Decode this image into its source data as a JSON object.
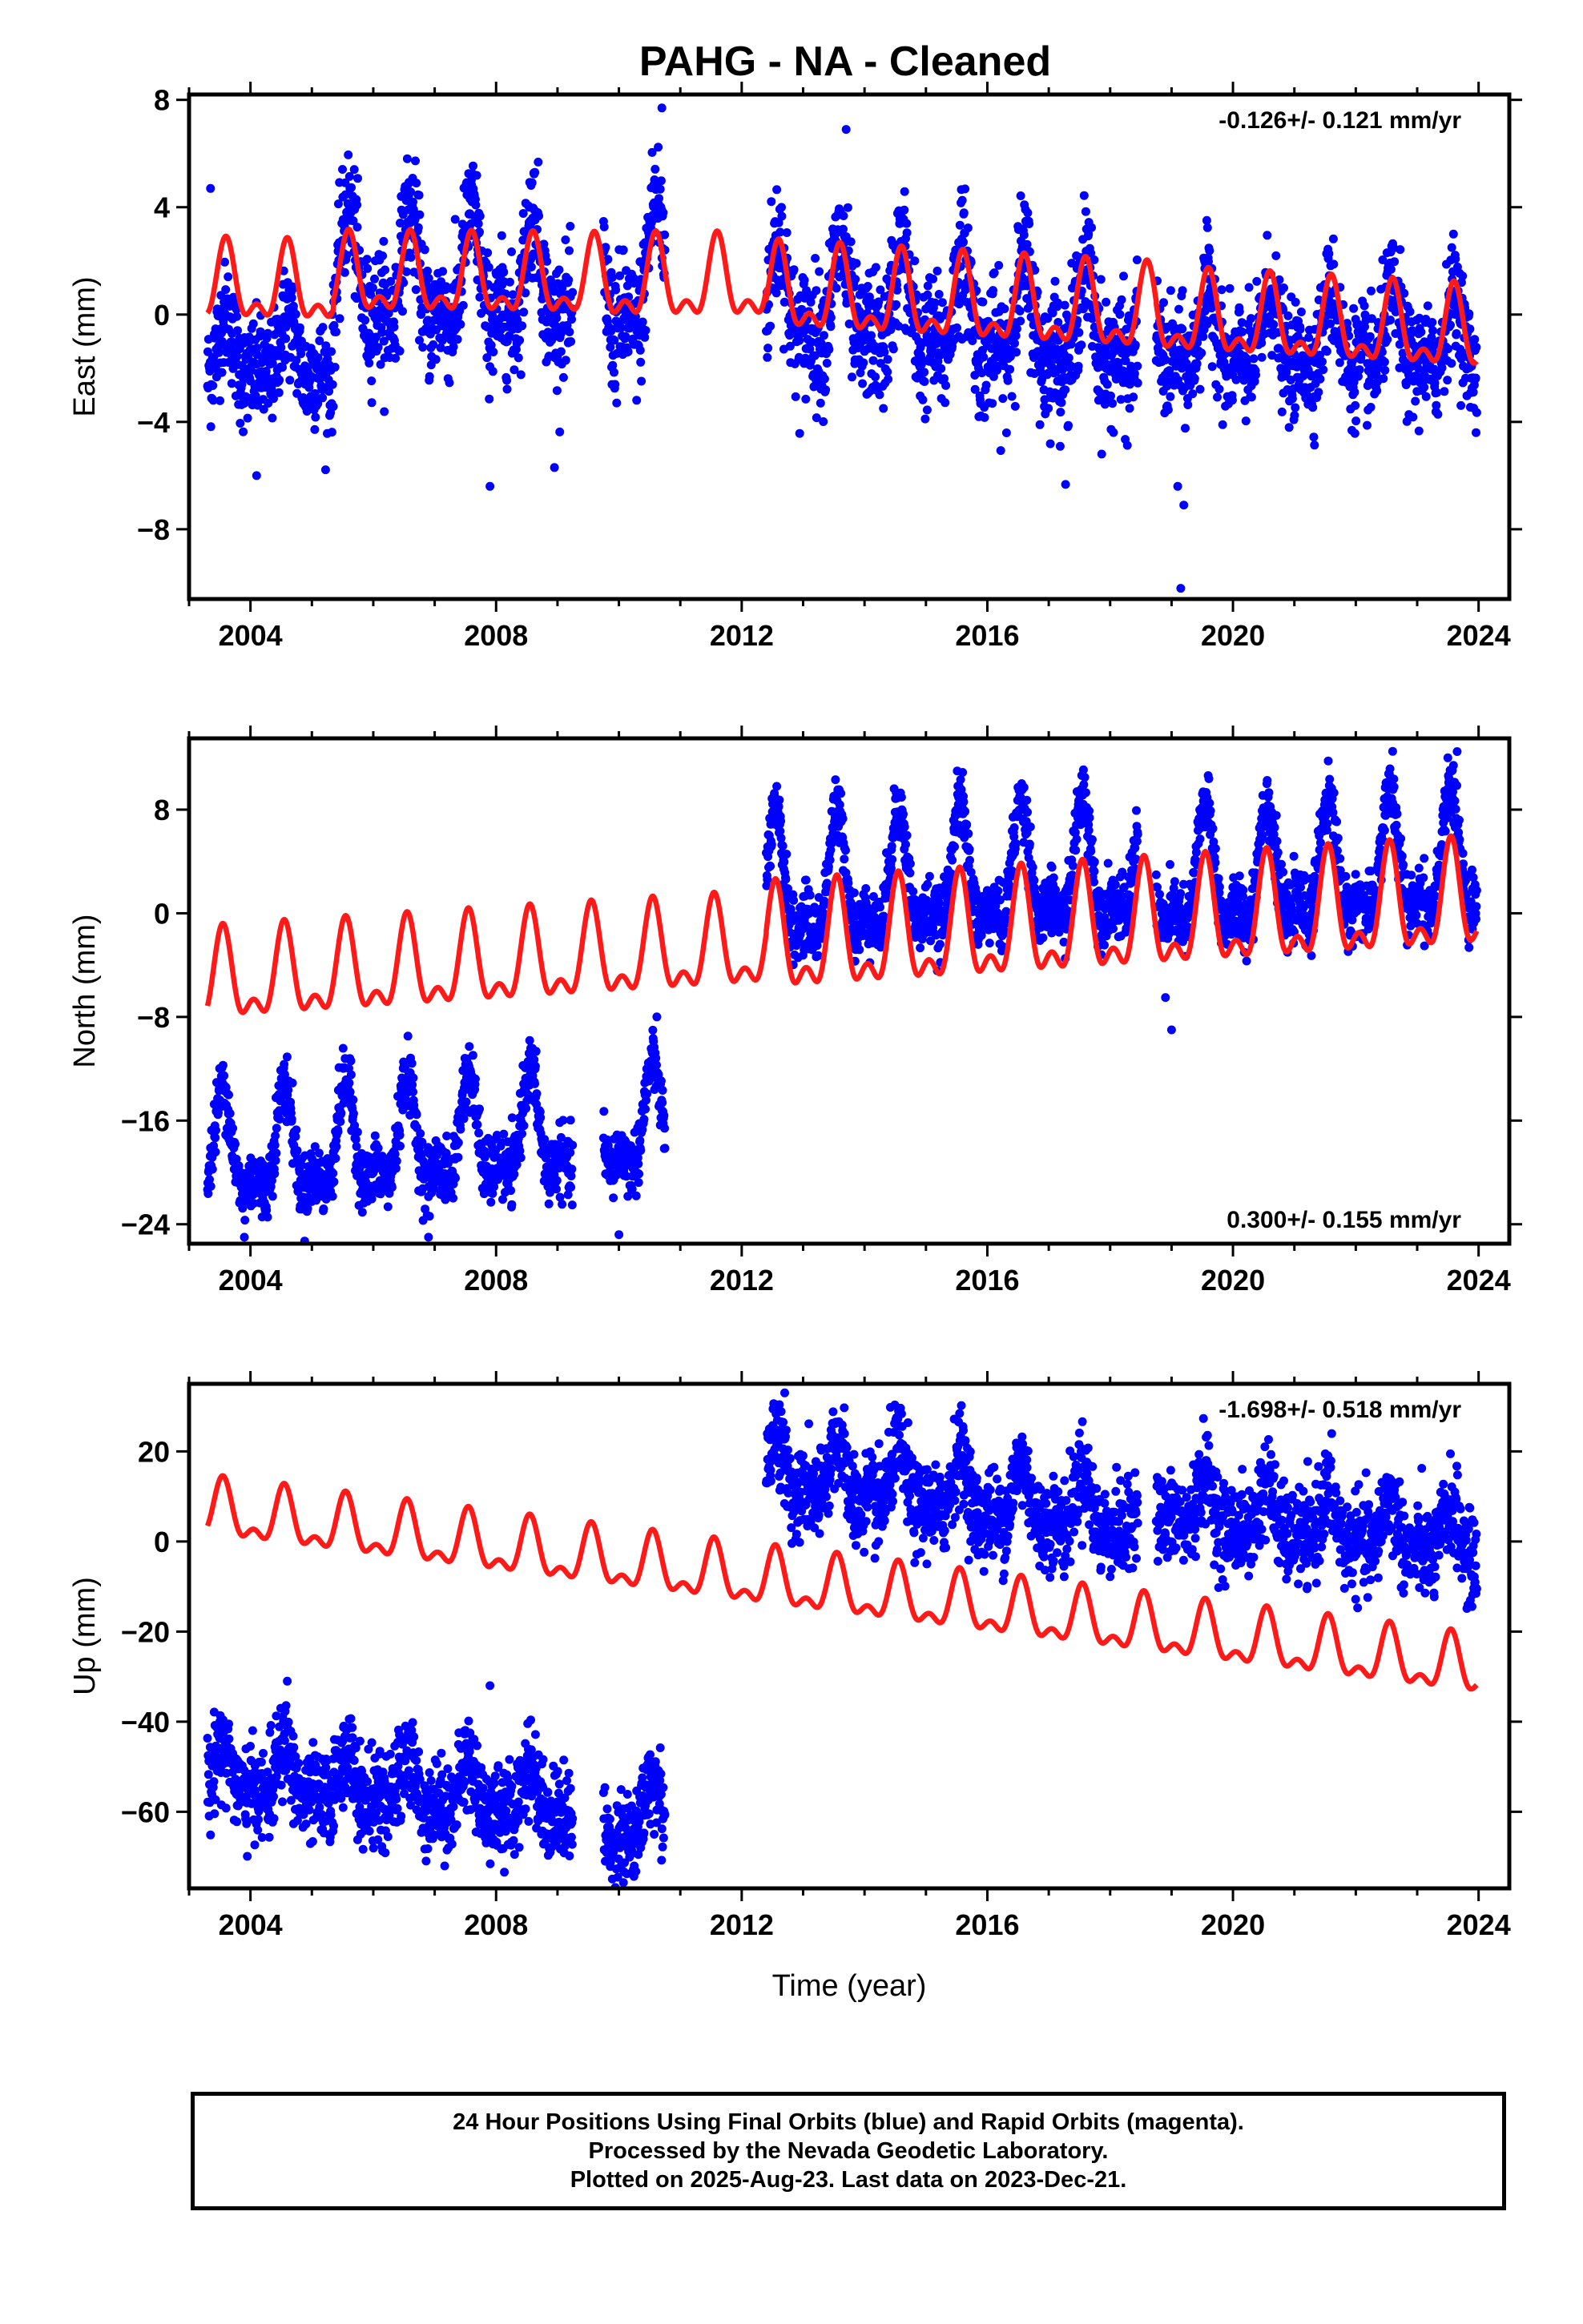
{
  "title": "PAHG  - NA - Cleaned",
  "colors": {
    "final_orbits": "#0000ff",
    "model": "#ff1a1a",
    "frame": "#000000"
  },
  "x_axis_label": "Time (year)",
  "caption": {
    "line1": "24 Hour Positions Using Final Orbits (blue) and Rapid Orbits (magenta).",
    "line2": "Processed by the Nevada Geodetic Laboratory.",
    "line3": "Plotted on 2025-Aug-23. Last data on 2023-Dec-21."
  },
  "chart_data": [
    {
      "type": "scatter",
      "ylabel": "East (mm)",
      "xlabel": "",
      "rate_text": "-0.126+/- 0.121 mm/yr",
      "rate_position": "top-right",
      "xlim": [
        2003.0,
        2024.5
      ],
      "ylim": [
        -10.6,
        8.2
      ],
      "xticks": [
        2004,
        2008,
        2012,
        2016,
        2020,
        2024
      ],
      "yticks": [
        -8,
        -4,
        0,
        4,
        8
      ],
      "data_segments": [
        {
          "start": 2003.3,
          "end": 2005.35,
          "offset": -1.6,
          "trend": 0.0,
          "amp": 1.0,
          "noise": 1.0
        },
        {
          "start": 2005.35,
          "end": 2009.25,
          "offset": 1.2,
          "trend": -0.05,
          "amp": 1.8,
          "noise": 1.1
        },
        {
          "start": 2009.75,
          "end": 2010.75,
          "offset": 1.0,
          "trend": 0.0,
          "amp": 2.2,
          "noise": 1.2
        },
        {
          "start": 2012.4,
          "end": 2018.45,
          "offset": 0.4,
          "trend": -0.2,
          "amp": 1.6,
          "noise": 1.2
        },
        {
          "start": 2018.75,
          "end": 2023.97,
          "offset": -1.0,
          "trend": -0.02,
          "amp": 1.2,
          "noise": 1.0
        }
      ],
      "outliers": [
        [
          2004.1,
          -6.0
        ],
        [
          2007.9,
          -6.4
        ],
        [
          2008.95,
          -5.7
        ],
        [
          2019.1,
          -6.4
        ],
        [
          2019.2,
          -7.1
        ],
        [
          2019.15,
          -10.2
        ],
        [
          2013.7,
          6.9
        ],
        [
          2010.7,
          7.7
        ],
        [
          2003.35,
          4.7
        ]
      ],
      "model": {
        "series": "red model curve",
        "segments": [
          {
            "start": 2003.3,
            "end": 2005.35,
            "base": 1.0,
            "trend": -0.05,
            "amp": 1.25
          },
          {
            "start": 2005.35,
            "end": 2009.75,
            "base": 1.25,
            "trend": -0.02,
            "amp": 1.25
          },
          {
            "start": 2009.75,
            "end": 2012.4,
            "base": 1.1,
            "trend": 0.0,
            "amp": 1.3
          },
          {
            "start": 2012.4,
            "end": 2018.75,
            "base": 0.75,
            "trend": -0.13,
            "amp": 1.35
          },
          {
            "start": 2018.75,
            "end": 2023.97,
            "base": -0.15,
            "trend": -0.126,
            "amp": 1.3
          }
        ],
        "peak_phase": 0.6
      }
    },
    {
      "type": "scatter",
      "ylabel": "North (mm)",
      "xlabel": "",
      "rate_text": "0.300+/- 0.155 mm/yr",
      "rate_position": "bottom-right",
      "xlim": [
        2003.0,
        2024.5
      ],
      "ylim": [
        -25.5,
        13.5
      ],
      "xticks": [
        2004,
        2008,
        2012,
        2016,
        2020,
        2024
      ],
      "yticks": [
        -24,
        -16,
        -8,
        0,
        8
      ],
      "data_segments": [
        {
          "start": 2003.3,
          "end": 2009.25,
          "offset": -19.0,
          "trend": 0.3,
          "amp": 3.5,
          "noise": 1.2
        },
        {
          "start": 2009.75,
          "end": 2010.75,
          "offset": -17.0,
          "trend": 0.3,
          "amp": 3.5,
          "noise": 1.2
        },
        {
          "start": 2012.4,
          "end": 2018.45,
          "offset": 1.3,
          "trend": 0.3,
          "amp": 4.0,
          "noise": 1.2
        },
        {
          "start": 2018.75,
          "end": 2023.97,
          "offset": 2.0,
          "trend": 0.3,
          "amp": 4.0,
          "noise": 1.2
        }
      ],
      "outliers": [
        [
          2019.0,
          -9.0
        ],
        [
          2018.9,
          -6.5
        ],
        [
          2010.0,
          -24.8
        ],
        [
          2003.9,
          -25.0
        ],
        [
          2006.9,
          -25.0
        ],
        [
          2022.6,
          12.5
        ],
        [
          2023.5,
          12.0
        ]
      ],
      "model": {
        "series": "red model curve",
        "segments": [
          {
            "start": 2003.3,
            "end": 2012.4,
            "base": -5.5,
            "trend": 0.3,
            "amp": 3.0
          },
          {
            "start": 2012.4,
            "end": 2023.97,
            "base": -2.8,
            "trend": 0.3,
            "amp": 3.5
          }
        ],
        "peak_phase": 0.55
      }
    },
    {
      "type": "scatter",
      "ylabel": "Up (mm)",
      "xlabel": "Time (year)",
      "rate_text": "-1.698+/- 0.518 mm/yr",
      "rate_position": "top-right",
      "xlim": [
        2003.0,
        2024.5
      ],
      "ylim": [
        -77.0,
        35.0
      ],
      "xticks": [
        2004,
        2008,
        2012,
        2016,
        2020,
        2024
      ],
      "yticks": [
        -60,
        -40,
        -20,
        0,
        20
      ],
      "data_segments": [
        {
          "start": 2003.3,
          "end": 2009.25,
          "offset": -52.0,
          "trend": -1.0,
          "amp": 5.0,
          "noise": 5.0
        },
        {
          "start": 2009.75,
          "end": 2010.75,
          "offset": -62.0,
          "trend": 0.0,
          "amp": 6.0,
          "noise": 5.0
        },
        {
          "start": 2012.4,
          "end": 2018.45,
          "offset": 15.0,
          "trend": -1.6,
          "amp": 6.0,
          "noise": 5.0
        },
        {
          "start": 2018.75,
          "end": 2023.97,
          "offset": 8.0,
          "trend": -1.7,
          "amp": 5.0,
          "noise": 5.0
        }
      ],
      "outliers": [
        [
          2007.9,
          -32.0
        ],
        [
          2012.7,
          33.0
        ],
        [
          2004.6,
          -31.0
        ]
      ],
      "model": {
        "series": "red model curve",
        "segments": [
          {
            "start": 2003.3,
            "end": 2023.97,
            "base": 6.5,
            "trend": -1.7,
            "amp": 5.5
          }
        ],
        "peak_phase": 0.55
      }
    }
  ]
}
